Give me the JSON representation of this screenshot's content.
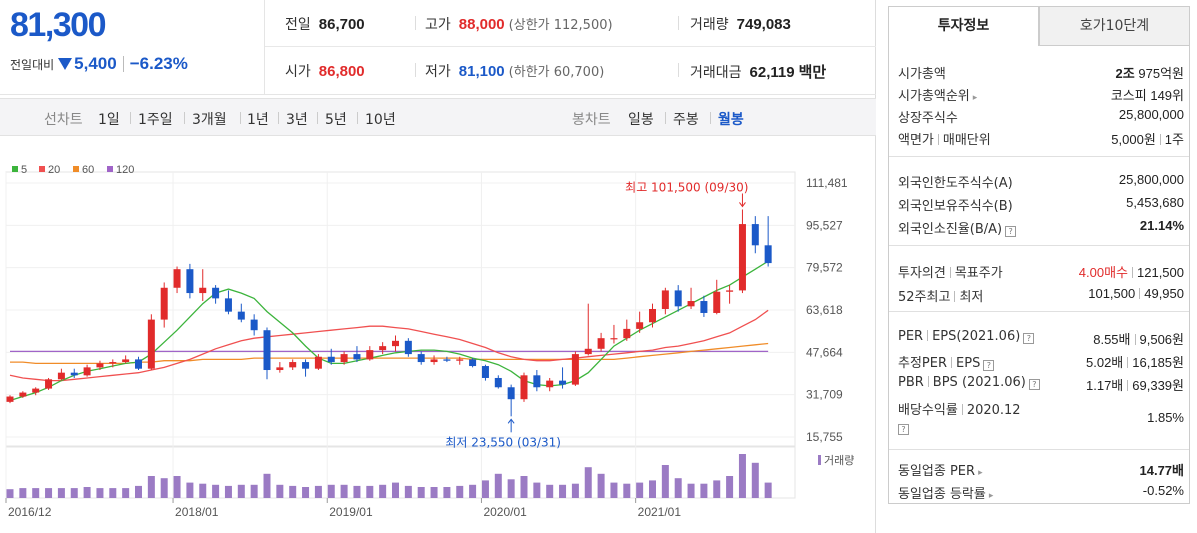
{
  "price": {
    "current": "81,300",
    "change_label": "전일대비",
    "change_amount": "5,400",
    "change_rate": "−6.23%"
  },
  "stats": {
    "prev_close_label": "전일",
    "prev_close": "86,700",
    "high_label": "고가",
    "high": "88,000",
    "upper_limit": "(상한가 112,500)",
    "volume_label": "거래량",
    "volume": "749,083",
    "open_label": "시가",
    "open": "86,800",
    "low_label": "저가",
    "low": "81,100",
    "lower_limit": "(하한가 60,700)",
    "trade_value_label": "거래대금",
    "trade_value": "62,119",
    "trade_value_unit": "백만"
  },
  "period_bar": {
    "line_label": "선차트",
    "line_options": [
      "1일",
      "1주일",
      "3개월",
      "1년",
      "3년",
      "5년",
      "10년"
    ],
    "candle_label": "봉차트",
    "candle_options": [
      "일봉",
      "주봉",
      "월봉"
    ],
    "active_candle": "월봉"
  },
  "tabs": {
    "tab1": "투자정보",
    "tab2": "호가10단계",
    "active": "투자정보"
  },
  "info": {
    "market_cap_label": "시가총액",
    "market_cap_jo": "2조",
    "market_cap_rest": "975억원",
    "market_cap_rank_label": "시가총액순위",
    "market_cap_rank": "코스피 149위",
    "shares_label": "상장주식수",
    "shares": "25,800,000",
    "par_label": "액면가",
    "unit_label": "매매단위",
    "par": "5,000원",
    "unit": "1주",
    "foreign_limit_label": "외국인한도주식수(A)",
    "foreign_limit": "25,800,000",
    "foreign_hold_label": "외국인보유주식수(B)",
    "foreign_hold": "5,453,680",
    "foreign_ratio_label": "외국인소진율(B/A)",
    "foreign_ratio": "21.14%",
    "opinion_label": "투자의견",
    "target_label": "목표주가",
    "opinion": "4.00매수",
    "target": "121,500",
    "w52_high_label": "52주최고",
    "w52_low_label": "최저",
    "w52_high": "101,500",
    "w52_low": "49,950",
    "per_label": "PER",
    "eps_label": "EPS(2021.06)",
    "per": "8.55배",
    "eps": "9,506원",
    "est_per_label": "추정PER",
    "est_eps_label": "EPS",
    "est_per": "5.02배",
    "est_eps": "16,185원",
    "pbr_label": "PBR",
    "bps_label": "BPS (2021.06)",
    "pbr": "1.17배",
    "bps": "69,339원",
    "dividend_label": "배당수익률",
    "dividend_period": "2020.12",
    "dividend": "1.85%",
    "sector_per_label": "동일업종 PER",
    "sector_per": "14.77배",
    "sector_change_label": "동일업종 등락률",
    "sector_change": "-0.52%"
  },
  "colors": {
    "up": "#e12b2b",
    "down": "#1b59c8",
    "ma5": "#3cb43c",
    "ma20": "#f05050",
    "ma60": "#f08c28",
    "ma120": "#a064c8",
    "volume": "#9b7bc4"
  },
  "chart_data": {
    "type": "candlestick",
    "interval": "monthly",
    "legend": [
      {
        "name": "5",
        "color": "#3cb43c"
      },
      {
        "name": "20",
        "color": "#f05050"
      },
      {
        "name": "60",
        "color": "#f08c28"
      },
      {
        "name": "120",
        "color": "#a064c8"
      }
    ],
    "y_ticks": [
      "111,481",
      "95,527",
      "79,572",
      "63,618",
      "47,664",
      "31,709",
      "15,755"
    ],
    "y_tick_values": [
      111481,
      95527,
      79572,
      63618,
      47664,
      31709,
      15755
    ],
    "x_ticks": [
      {
        "label": "2016/12",
        "index": 0
      },
      {
        "label": "2018/01",
        "index": 13
      },
      {
        "label": "2019/01",
        "index": 25
      },
      {
        "label": "2020/01",
        "index": 37
      },
      {
        "label": "2021/01",
        "index": 49
      }
    ],
    "max_annotation": {
      "label": "최고 101,500 (09/30)",
      "index": 57,
      "value": 101500
    },
    "min_annotation": {
      "label": "최저 23,550 (03/31)",
      "index": 39,
      "value": 23550
    },
    "volume_label": "거래량",
    "candles": [
      [
        29000,
        31500,
        28500,
        31000
      ],
      [
        31000,
        33000,
        30500,
        32500
      ],
      [
        32500,
        34500,
        31500,
        34000
      ],
      [
        34000,
        38000,
        33500,
        37500
      ],
      [
        37500,
        41500,
        37000,
        40000
      ],
      [
        40000,
        41500,
        38000,
        39000
      ],
      [
        39000,
        43000,
        38500,
        42000
      ],
      [
        42000,
        44500,
        41000,
        43500
      ],
      [
        43500,
        45000,
        42000,
        44000
      ],
      [
        44000,
        46500,
        43500,
        45000
      ],
      [
        45000,
        46000,
        41000,
        41500
      ],
      [
        41500,
        62000,
        41000,
        60000
      ],
      [
        60000,
        74000,
        57000,
        72000
      ],
      [
        72000,
        80000,
        70000,
        79000
      ],
      [
        79000,
        81000,
        68000,
        70000
      ],
      [
        70000,
        79000,
        67000,
        72000
      ],
      [
        72000,
        73000,
        66000,
        68000
      ],
      [
        68000,
        71000,
        62000,
        63000
      ],
      [
        63000,
        66000,
        59000,
        60000
      ],
      [
        60000,
        62000,
        54000,
        56000
      ],
      [
        56000,
        57000,
        37500,
        41000
      ],
      [
        41000,
        44000,
        40000,
        42000
      ],
      [
        42000,
        45000,
        41000,
        44000
      ],
      [
        44000,
        45000,
        38500,
        41500
      ],
      [
        41500,
        47000,
        41000,
        46000
      ],
      [
        46000,
        49000,
        43000,
        44000
      ],
      [
        44000,
        48000,
        43000,
        47000
      ],
      [
        47000,
        50000,
        44000,
        45000
      ],
      [
        45000,
        50000,
        44500,
        48500
      ],
      [
        48500,
        51500,
        47000,
        50000
      ],
      [
        50000,
        54000,
        48000,
        52000
      ],
      [
        52000,
        53000,
        46000,
        47000
      ],
      [
        47000,
        48000,
        43000,
        44000
      ],
      [
        44000,
        46500,
        43000,
        45000
      ],
      [
        45000,
        46000,
        44000,
        44500
      ],
      [
        44500,
        46000,
        43000,
        45000
      ],
      [
        45000,
        45500,
        42000,
        42500
      ],
      [
        42500,
        43000,
        37000,
        38000
      ],
      [
        38000,
        39000,
        34000,
        34500
      ],
      [
        34500,
        35500,
        23550,
        30000
      ],
      [
        30000,
        40000,
        29000,
        39000
      ],
      [
        39000,
        41000,
        33000,
        34500
      ],
      [
        34500,
        38000,
        33000,
        37000
      ],
      [
        37000,
        42000,
        34000,
        35500
      ],
      [
        35500,
        48000,
        35000,
        47000
      ],
      [
        47000,
        66000,
        46500,
        49000
      ],
      [
        49000,
        55000,
        48000,
        53000
      ],
      [
        53000,
        58000,
        51000,
        53000
      ],
      [
        53000,
        60000,
        52000,
        56500
      ],
      [
        56500,
        63000,
        55000,
        59000
      ],
      [
        59000,
        66000,
        57000,
        64000
      ],
      [
        64000,
        72000,
        62000,
        71000
      ],
      [
        71000,
        73000,
        63000,
        65000
      ],
      [
        65000,
        72000,
        64000,
        67000
      ],
      [
        67000,
        69000,
        61000,
        62500
      ],
      [
        62500,
        75000,
        62000,
        70500
      ],
      [
        70500,
        73000,
        66000,
        71000
      ],
      [
        71000,
        101500,
        70000,
        96000
      ],
      [
        96000,
        99000,
        85000,
        88000
      ],
      [
        88000,
        99000,
        80000,
        81300
      ]
    ],
    "ma5": [
      29500,
      31000,
      32500,
      34500,
      37000,
      39000,
      40500,
      41500,
      42500,
      43500,
      44000,
      47000,
      51500,
      56000,
      61000,
      66000,
      70000,
      71500,
      70000,
      68000,
      63000,
      59000,
      55000,
      50000,
      45500,
      43500,
      43500,
      44500,
      45500,
      46500,
      47500,
      48000,
      48500,
      48500,
      48000,
      47000,
      45500,
      44500,
      43000,
      40500,
      37000,
      35500,
      35000,
      35500,
      37000,
      40000,
      45000,
      50000,
      53000,
      56000,
      58500,
      61000,
      63500,
      66000,
      68500,
      71000,
      73000,
      76000,
      79000,
      82000
    ],
    "ma20": [
      39000,
      38000,
      37500,
      37000,
      37000,
      37500,
      38000,
      38500,
      39000,
      39500,
      40000,
      41000,
      42000,
      43500,
      45000,
      47000,
      49000,
      50500,
      52000,
      53000,
      53500,
      54000,
      54500,
      55000,
      55500,
      56000,
      56500,
      57000,
      57500,
      57500,
      57000,
      56500,
      55500,
      54500,
      53500,
      52500,
      51000,
      49500,
      47500,
      46000,
      45000,
      44500,
      44500,
      45000,
      45500,
      46000,
      46500,
      47000,
      47500,
      48000,
      48500,
      49500,
      50000,
      51000,
      52000,
      53500,
      55000,
      57500,
      60000,
      63500
    ],
    "ma60": [
      44000,
      44000,
      43500,
      43500,
      43500,
      43500,
      43500,
      43500,
      43500,
      43500,
      44000,
      44000,
      44500,
      44500,
      44500,
      45000,
      45000,
      45000,
      45000,
      45500,
      45500,
      45500,
      45500,
      45500,
      45500,
      45500,
      45500,
      45500,
      45500,
      45500,
      45500,
      45500,
      45500,
      45500,
      45500,
      45500,
      45000,
      45000,
      45000,
      45000,
      45000,
      45000,
      45000,
      45000,
      45000,
      45000,
      45000,
      45000,
      45500,
      46000,
      46500,
      47000,
      47500,
      48000,
      48500,
      49000,
      49500,
      50000,
      50500,
      51000
    ],
    "ma120": [
      48000,
      48000,
      48000,
      48000,
      48000,
      48000,
      48000,
      48000,
      48000,
      48000,
      48000,
      48000,
      48000,
      48000,
      48000,
      48000,
      48000,
      48000,
      48000,
      48000,
      48000,
      48000,
      48000,
      48000,
      48000,
      48000,
      48000,
      48000,
      48000,
      48000,
      48000,
      48000,
      48000,
      48000,
      48000,
      48000,
      48000,
      48000,
      48000,
      48000,
      48000,
      48000,
      48000,
      48000,
      48000,
      48000,
      48000,
      48000,
      48000,
      48000,
      48000,
      48000,
      48000,
      48000,
      48000,
      48000,
      48000,
      48000,
      48000,
      48000
    ],
    "volumes": [
      8,
      9,
      9,
      9,
      9,
      9,
      10,
      9,
      9,
      9,
      11,
      20,
      18,
      20,
      14,
      13,
      12,
      11,
      12,
      12,
      22,
      12,
      11,
      10,
      11,
      12,
      12,
      11,
      11,
      12,
      14,
      11,
      10,
      10,
      10,
      11,
      12,
      16,
      22,
      17,
      20,
      14,
      12,
      12,
      13,
      28,
      22,
      14,
      13,
      14,
      16,
      30,
      18,
      13,
      13,
      16,
      20,
      40,
      32,
      14
    ]
  }
}
